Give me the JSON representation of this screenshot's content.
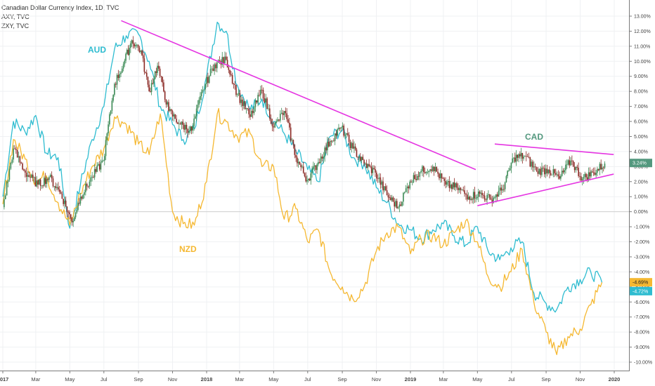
{
  "legend": {
    "main": "Canadian Dollar Currency Index, 1D, TVC",
    "s2": "AXY, TVC",
    "s3": "ZXY, TVC"
  },
  "annotations": {
    "aud": "AUD",
    "nzd": "NZD",
    "cad": "CAD"
  },
  "colors": {
    "aud": "#2ebcd0",
    "nzd": "#f5b831",
    "up": "#3b8a55",
    "down": "#8b2a25",
    "trend": "#e535e2",
    "grid": "#eff1f3",
    "axis": "#7b7b7b",
    "zero": "#cfcfcf"
  },
  "badges": [
    {
      "text": "3.24%",
      "value": 3.24,
      "color": "#53987e"
    },
    {
      "text": "-4.69%",
      "value": -4.69,
      "color": "#f5b831"
    },
    {
      "text": "-4.72%",
      "value": -4.72,
      "color": "#2ebcd0"
    }
  ],
  "chart_data": {
    "type": "line",
    "x_ticks": [
      "2017",
      "Mar",
      "May",
      "Jul",
      "Sep",
      "Nov",
      "2018",
      "Mar",
      "May",
      "Jul",
      "Sep",
      "Nov",
      "2019",
      "Mar",
      "May",
      "Jul",
      "Sep",
      "Nov",
      "2020"
    ],
    "y_ticks": [
      "13.00%",
      "12.00%",
      "11.00%",
      "10.00%",
      "9.00%",
      "8.00%",
      "7.00%",
      "6.00%",
      "5.00%",
      "4.00%",
      "3.00%",
      "2.00%",
      "1.00%",
      "0.00%",
      "-1.00%",
      "-2.00%",
      "-3.00%",
      "-4.00%",
      "-5.00%",
      "-6.00%",
      "-7.00%",
      "-8.00%",
      "-9.00%",
      "-10.00%"
    ],
    "ylim": [
      -10.5,
      13.5
    ],
    "series": [
      {
        "name": "Canadian Dollar Currency Index",
        "style": "candles",
        "x": [
          "2017-01-01",
          "2017-01-20",
          "2017-02-10",
          "2017-03-05",
          "2017-03-25",
          "2017-04-15",
          "2017-05-05",
          "2017-05-20",
          "2017-06-10",
          "2017-06-30",
          "2017-07-20",
          "2017-08-05",
          "2017-08-20",
          "2017-09-05",
          "2017-09-20",
          "2017-10-05",
          "2017-10-25",
          "2017-11-15",
          "2017-12-05",
          "2017-12-25",
          "2018-01-15",
          "2018-02-05",
          "2018-02-25",
          "2018-03-20",
          "2018-04-10",
          "2018-05-01",
          "2018-05-20",
          "2018-06-10",
          "2018-06-30",
          "2018-07-20",
          "2018-08-10",
          "2018-08-30",
          "2018-09-20",
          "2018-10-10",
          "2018-10-30",
          "2018-11-20",
          "2018-12-10",
          "2018-12-31",
          "2019-01-20",
          "2019-02-10",
          "2019-03-05",
          "2019-03-25",
          "2019-04-15",
          "2019-05-05",
          "2019-05-25",
          "2019-06-15",
          "2019-07-05",
          "2019-07-25",
          "2019-08-15",
          "2019-09-05",
          "2019-09-25",
          "2019-10-15",
          "2019-11-05",
          "2019-11-25",
          "2019-12-15"
        ],
        "y": [
          0.3,
          4.2,
          2.6,
          1.8,
          2.3,
          1.2,
          -0.7,
          1.0,
          2.3,
          3.4,
          8.5,
          9.8,
          11.4,
          10.7,
          8.0,
          9.7,
          6.7,
          5.8,
          5.4,
          8.1,
          9.8,
          10.1,
          7.8,
          6.3,
          8.1,
          5.6,
          6.7,
          3.6,
          2.1,
          3.3,
          4.7,
          5.6,
          4.2,
          3.2,
          2.6,
          1.1,
          0.3,
          2.0,
          2.7,
          3.0,
          1.8,
          1.6,
          1.0,
          1.2,
          0.8,
          1.5,
          3.6,
          3.7,
          2.7,
          2.8,
          2.2,
          3.4,
          2.2,
          2.6,
          3.2
        ]
      },
      {
        "name": "AXY",
        "style": "line",
        "x": [
          "2017-01-01",
          "2017-01-20",
          "2017-02-10",
          "2017-03-01",
          "2017-03-20",
          "2017-04-10",
          "2017-05-01",
          "2017-05-20",
          "2017-06-10",
          "2017-07-01",
          "2017-07-20",
          "2017-08-10",
          "2017-09-01",
          "2017-09-20",
          "2017-10-10",
          "2017-11-01",
          "2017-11-20",
          "2017-12-10",
          "2018-01-01",
          "2018-01-20",
          "2018-02-05",
          "2018-02-25",
          "2018-03-20",
          "2018-04-10",
          "2018-05-01",
          "2018-05-20",
          "2018-06-10",
          "2018-07-01",
          "2018-07-20",
          "2018-08-10",
          "2018-09-01",
          "2018-09-20",
          "2018-10-10",
          "2018-11-01",
          "2018-11-20",
          "2018-12-10",
          "2019-01-01",
          "2019-01-20",
          "2019-02-10",
          "2019-03-01",
          "2019-03-20",
          "2019-04-10",
          "2019-05-01",
          "2019-05-20",
          "2019-06-10",
          "2019-06-30",
          "2019-07-20",
          "2019-08-10",
          "2019-09-01",
          "2019-09-20",
          "2019-10-10",
          "2019-11-01",
          "2019-11-20",
          "2019-12-10"
        ],
        "y": [
          1.0,
          6.0,
          5.3,
          6.4,
          3.9,
          3.6,
          -1.1,
          1.8,
          4.8,
          7.0,
          10.8,
          11.7,
          11.8,
          10.0,
          7.0,
          5.8,
          4.8,
          5.5,
          9.0,
          12.6,
          12.0,
          8.4,
          6.8,
          7.5,
          6.0,
          5.2,
          4.0,
          2.8,
          2.0,
          5.0,
          5.4,
          3.6,
          3.2,
          1.6,
          0.6,
          -0.8,
          -1.2,
          -1.8,
          -1.2,
          -0.8,
          -1.6,
          -2.2,
          -1.0,
          -2.6,
          -3.2,
          -2.4,
          -2.0,
          -5.4,
          -6.1,
          -6.5,
          -5.0,
          -4.5,
          -4.0,
          -4.7
        ]
      },
      {
        "name": "ZXY",
        "style": "line",
        "x": [
          "2017-01-01",
          "2017-01-20",
          "2017-02-10",
          "2017-03-01",
          "2017-03-20",
          "2017-04-10",
          "2017-05-01",
          "2017-05-20",
          "2017-06-10",
          "2017-07-01",
          "2017-07-20",
          "2017-08-10",
          "2017-09-01",
          "2017-09-20",
          "2017-10-10",
          "2017-11-01",
          "2017-11-20",
          "2017-12-10",
          "2018-01-01",
          "2018-01-20",
          "2018-02-05",
          "2018-02-25",
          "2018-03-20",
          "2018-04-10",
          "2018-05-01",
          "2018-05-20",
          "2018-06-10",
          "2018-07-01",
          "2018-07-20",
          "2018-08-10",
          "2018-09-01",
          "2018-09-20",
          "2018-10-10",
          "2018-11-01",
          "2018-11-20",
          "2018-12-10",
          "2019-01-01",
          "2019-01-20",
          "2019-02-10",
          "2019-03-01",
          "2019-03-20",
          "2019-04-10",
          "2019-05-01",
          "2019-05-20",
          "2019-06-10",
          "2019-06-30",
          "2019-07-20",
          "2019-08-10",
          "2019-09-01",
          "2019-09-20",
          "2019-10-10",
          "2019-11-01",
          "2019-11-20",
          "2019-12-10"
        ],
        "y": [
          0.5,
          4.8,
          3.5,
          2.0,
          2.4,
          0.6,
          -0.9,
          1.2,
          3.0,
          4.2,
          6.3,
          5.8,
          4.5,
          3.8,
          6.5,
          0.0,
          -0.8,
          -0.9,
          2.0,
          6.5,
          6.0,
          5.0,
          5.2,
          3.0,
          3.0,
          -0.5,
          0.2,
          -2.0,
          -1.2,
          -4.0,
          -5.0,
          -5.8,
          -5.0,
          -2.6,
          -1.4,
          -1.0,
          -2.8,
          -1.8,
          -1.6,
          -2.2,
          -1.4,
          -0.6,
          -2.0,
          -4.3,
          -5.0,
          -4.0,
          -2.5,
          -6.0,
          -8.0,
          -9.5,
          -8.3,
          -7.8,
          -6.2,
          -4.7
        ]
      }
    ],
    "trendlines": [
      {
        "from": [
          "2017-08-01",
          12.7
        ],
        "to": [
          "2019-04-28",
          2.8
        ]
      },
      {
        "from": [
          "2019-06-01",
          4.5
        ],
        "to": [
          "2019-12-31",
          3.8
        ]
      },
      {
        "from": [
          "2019-05-01",
          0.4
        ],
        "to": [
          "2019-12-31",
          2.5
        ]
      }
    ],
    "grid": true,
    "y_axis_position": "right"
  }
}
